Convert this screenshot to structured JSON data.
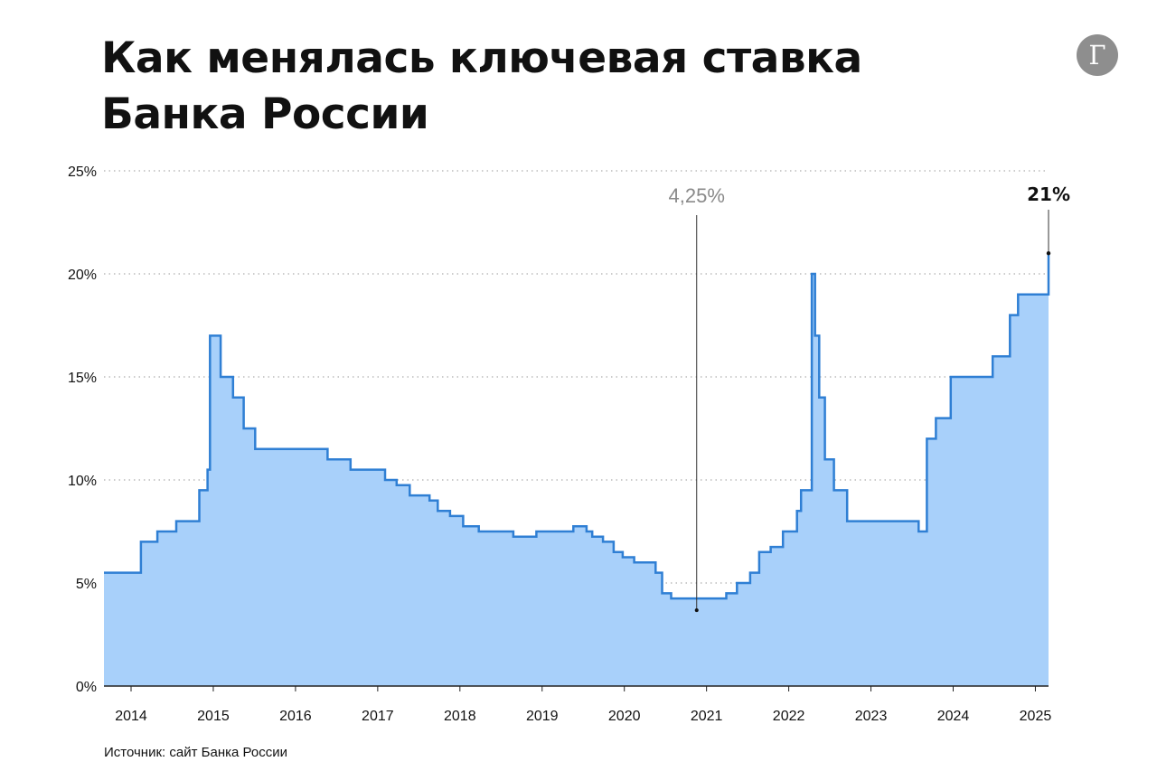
{
  "title_line1": "Как менялась ключевая ставка",
  "title_line2": "Банка России",
  "logo_letter": "Г",
  "source": "Источник: сайт Банка России",
  "colors": {
    "line": "#2f7fd4",
    "fill": "#a8d0fa",
    "grid": "#9a9a9a"
  },
  "chart_data": {
    "type": "area",
    "step": true,
    "xlabel": "",
    "ylabel": "",
    "xlim": [
      2013.67,
      2025.16
    ],
    "ylim": [
      0,
      25
    ],
    "grid": true,
    "x_ticks": [
      "2014",
      "2015",
      "2016",
      "2017",
      "2018",
      "2019",
      "2020",
      "2021",
      "2022",
      "2023",
      "2024",
      "2025"
    ],
    "y_ticks": [
      "0%",
      "5%",
      "10%",
      "15%",
      "20%",
      "25%"
    ],
    "series": [
      {
        "x": [
          2013.67,
          2014.12,
          2014.32,
          2014.55,
          2014.83,
          2014.93,
          2014.96,
          2015.09,
          2015.24,
          2015.37,
          2015.51,
          2016.39,
          2016.67,
          2017.09,
          2017.23,
          2017.39,
          2017.63,
          2017.73,
          2017.88,
          2018.04,
          2018.23,
          2018.65,
          2018.93,
          2019.38,
          2019.54,
          2019.61,
          2019.74,
          2019.87,
          2019.98,
          2020.12,
          2020.38,
          2020.46,
          2020.57,
          2021.14,
          2021.24,
          2021.37,
          2021.53,
          2021.64,
          2021.78,
          2021.93,
          2022.1,
          2022.15,
          2022.28,
          2022.32,
          2022.37,
          2022.44,
          2022.55,
          2022.71,
          2023.58,
          2023.68,
          2023.79,
          2023.97,
          2024.48,
          2024.69,
          2024.79,
          2025.16
        ],
        "y": [
          5.5,
          7.0,
          7.5,
          8.0,
          9.5,
          10.5,
          17.0,
          15.0,
          14.0,
          12.5,
          11.5,
          11.0,
          10.5,
          10.0,
          9.75,
          9.25,
          9.0,
          8.5,
          8.25,
          7.75,
          7.5,
          7.25,
          7.5,
          7.75,
          7.5,
          7.25,
          7.0,
          6.5,
          6.25,
          6.0,
          5.5,
          4.5,
          4.25,
          4.25,
          4.5,
          5.0,
          5.5,
          6.5,
          6.75,
          7.5,
          8.5,
          9.5,
          20.0,
          17.0,
          14.0,
          11.0,
          9.5,
          8.0,
          7.5,
          12.0,
          13.0,
          15.0,
          16.0,
          18.0,
          19.0,
          21.0
        ]
      }
    ],
    "annotations": [
      {
        "text": "4,25%",
        "x": 2020.88,
        "y": 4.25
      },
      {
        "text": "21%",
        "x": 2025.16,
        "y": 21.0
      }
    ]
  }
}
